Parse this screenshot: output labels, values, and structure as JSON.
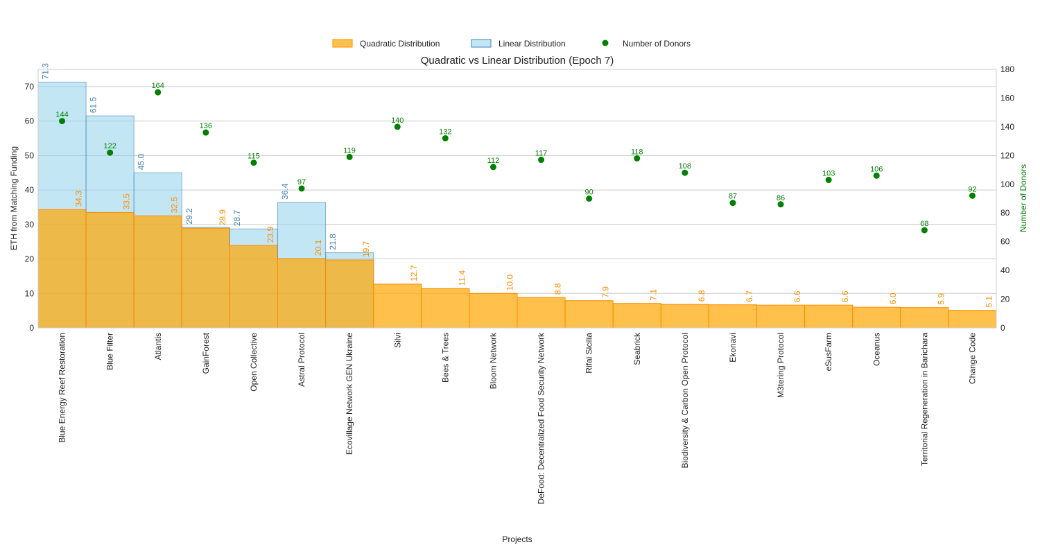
{
  "chart_data": {
    "type": "bar",
    "title": "Quadratic vs Linear Distribution (Epoch 7)",
    "xlabel": "Projects",
    "ylabel": "ETH from Matching Funding",
    "y2label": "Number of Donors",
    "ylim": [
      0,
      75
    ],
    "y2lim": [
      0,
      180
    ],
    "yticks": [
      0,
      10,
      20,
      30,
      40,
      50,
      60,
      70
    ],
    "y2ticks": [
      0,
      20,
      40,
      60,
      80,
      100,
      120,
      140,
      160,
      180
    ],
    "legend": [
      "Quadratic Distribution",
      "Linear Distribution",
      "Number of Donors"
    ],
    "legend_position": "top-center",
    "grid": true,
    "categories": [
      "Blue Energy Reef Restoration",
      "Blue Filter",
      "Atlantis",
      "GainForest",
      "Open Collective",
      "Astral Protocol",
      "Ecovillage Network GEN Ukraine",
      "Silvi",
      "Bees & Trees",
      "Bloom Network",
      "DeFood: Decentralized Food Security Network",
      "Rifai Sicilia",
      "Seabrick",
      "Biodiversity & Carbon Open Protocol",
      "Ekonavi",
      "M3tering Protocol",
      "eSusFarm",
      "Oceanus",
      "Territorial Regeneration in Barichara",
      "Change Code"
    ],
    "series": [
      {
        "name": "Quadratic Distribution",
        "color": "#ffa500",
        "values": [
          34.3,
          33.5,
          32.5,
          28.9,
          23.9,
          20.1,
          19.7,
          12.7,
          11.4,
          10.0,
          8.8,
          7.9,
          7.1,
          6.8,
          6.7,
          6.6,
          6.6,
          6.0,
          5.9,
          5.1
        ]
      },
      {
        "name": "Linear Distribution",
        "color": "#87ceeb",
        "values": [
          71.3,
          61.5,
          45.0,
          29.2,
          28.7,
          36.4,
          21.8,
          null,
          null,
          null,
          null,
          null,
          null,
          null,
          null,
          null,
          null,
          null,
          null,
          null
        ]
      },
      {
        "name": "Number of Donors",
        "color": "#008000",
        "values": [
          144,
          122,
          164,
          136,
          115,
          97,
          119,
          140,
          132,
          112,
          117,
          90,
          118,
          108,
          87,
          86,
          103,
          106,
          68,
          92
        ]
      }
    ]
  }
}
